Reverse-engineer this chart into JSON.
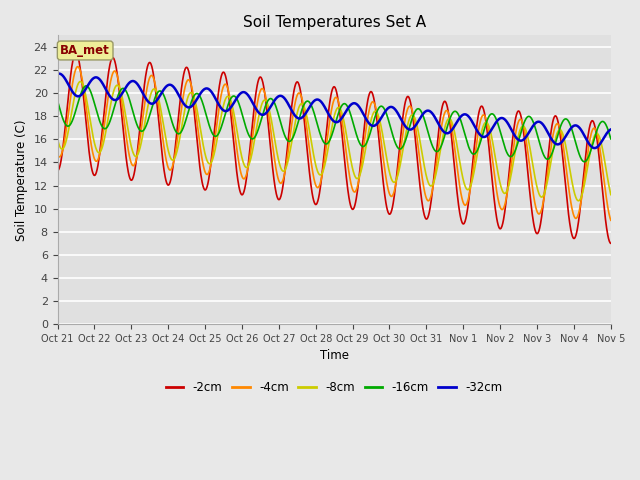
{
  "title": "Soil Temperatures Set A",
  "xlabel": "Time",
  "ylabel": "Soil Temperature (C)",
  "ylim": [
    0,
    25
  ],
  "yticks": [
    0,
    2,
    4,
    6,
    8,
    10,
    12,
    14,
    16,
    18,
    20,
    22,
    24
  ],
  "xtick_labels": [
    "Oct 21",
    "Oct 22",
    "Oct 23",
    "Oct 24",
    "Oct 25",
    "Oct 26",
    "Oct 27",
    "Oct 28",
    "Oct 29",
    "Oct 30",
    "Oct 31",
    "Nov 1",
    "Nov 2",
    "Nov 3",
    "Nov 4",
    "Nov 5"
  ],
  "legend_labels": [
    "-2cm",
    "-4cm",
    "-8cm",
    "-16cm",
    "-32cm"
  ],
  "legend_colors": [
    "#cc0000",
    "#ff8800",
    "#cccc00",
    "#00aa00",
    "#0000cc"
  ],
  "line_widths": [
    1.2,
    1.2,
    1.2,
    1.2,
    1.8
  ],
  "annotation_text": "BA_met",
  "annotation_color": "#880000",
  "fig_bg_color": "#e8e8e8",
  "plot_bg_color": "#e0e0e0",
  "grid_color": "#ffffff",
  "n_points": 1440
}
